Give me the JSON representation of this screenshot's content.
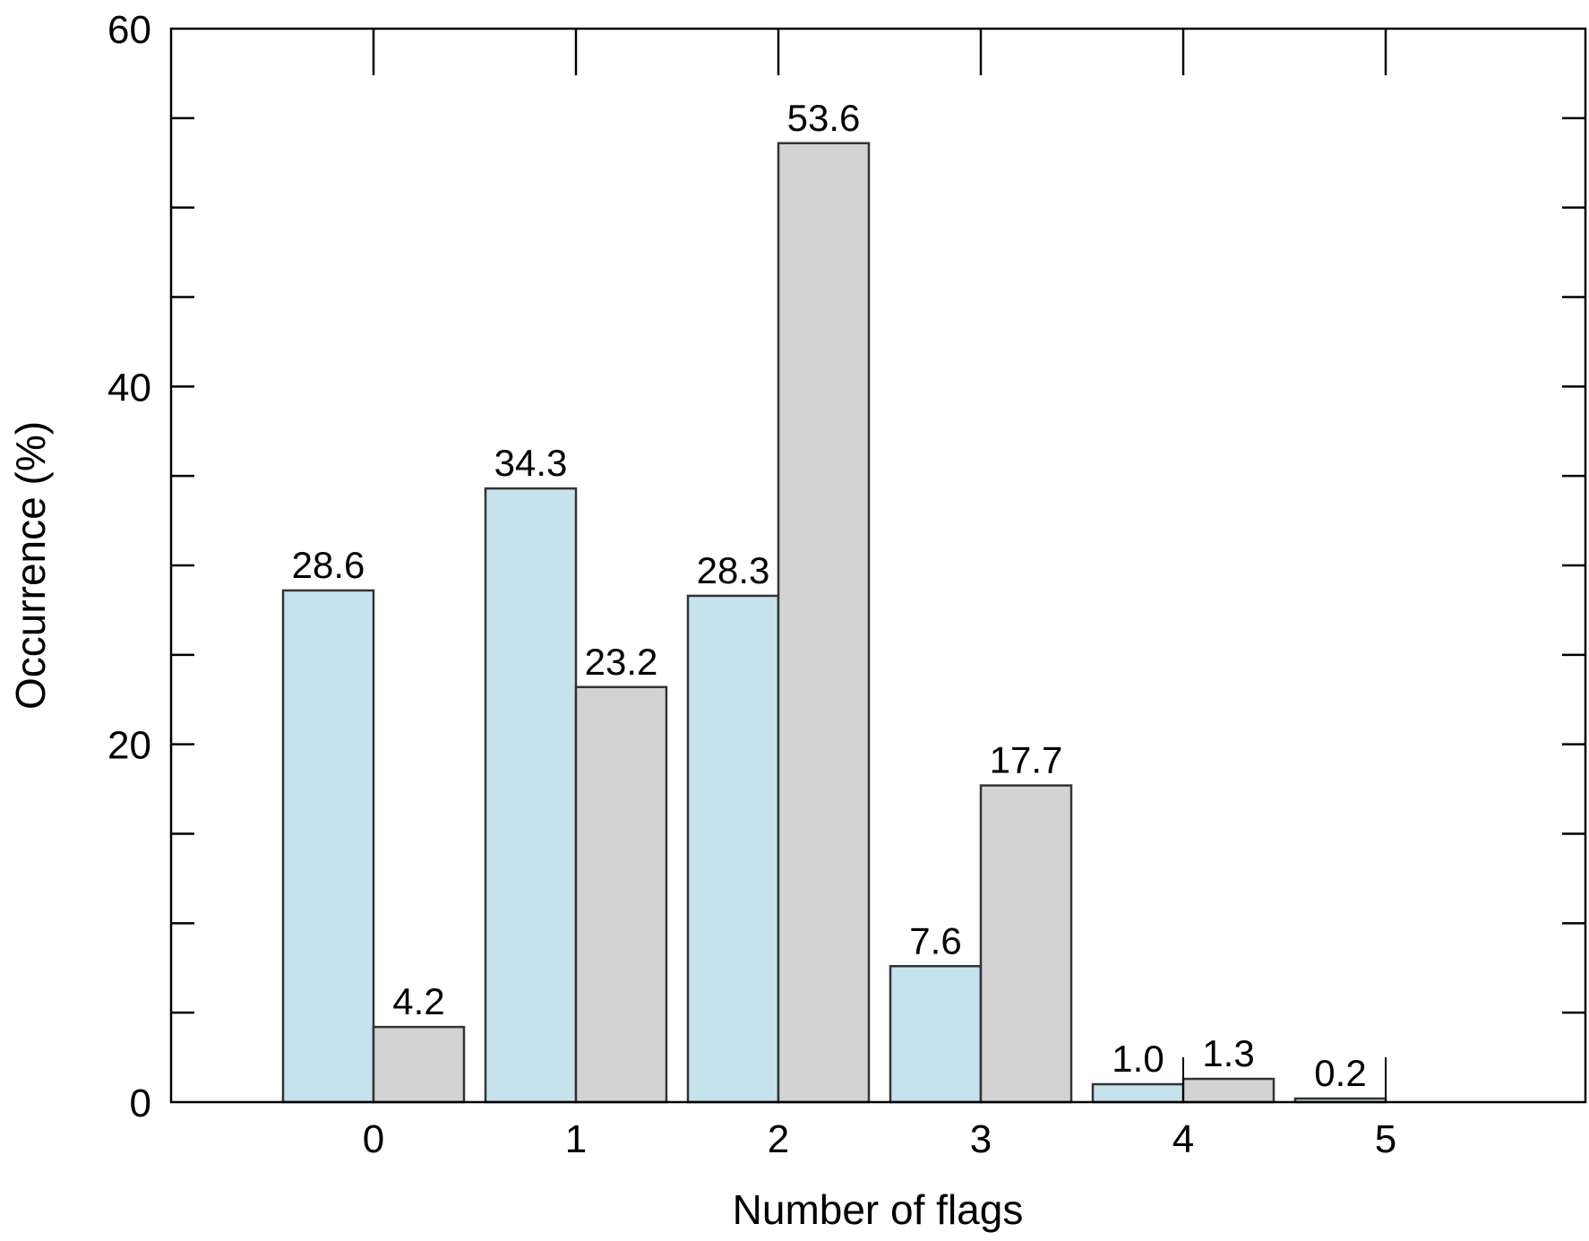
{
  "chart_data": {
    "type": "bar",
    "title": "",
    "xlabel": "Number of flags",
    "ylabel": "Occurrence (%)",
    "categories": [
      "0",
      "1",
      "2",
      "3",
      "4",
      "5"
    ],
    "series": [
      {
        "values": [
          28.6,
          34.3,
          28.3,
          7.6,
          1.0,
          0.2
        ],
        "color": "#c6e3ed"
      },
      {
        "values": [
          4.2,
          23.2,
          53.6,
          17.7,
          1.3,
          null
        ],
        "color": "#d3d3d3"
      }
    ],
    "data_labels": [
      [
        "28.6",
        "34.3",
        "28.3",
        "7.6",
        "1.0",
        "0.2"
      ],
      [
        "4.2",
        "23.2",
        "53.6",
        "17.7",
        "1.3",
        ""
      ]
    ],
    "xlim": [
      -1,
      6
    ],
    "ylim": [
      0,
      60
    ],
    "y_ticks": [
      0,
      20,
      40,
      60
    ],
    "y_tick_labels": [
      "0",
      "20",
      "40",
      "60"
    ],
    "y_minor_step": 5,
    "grid": false,
    "legend": "none",
    "edge_color": "#333333"
  }
}
